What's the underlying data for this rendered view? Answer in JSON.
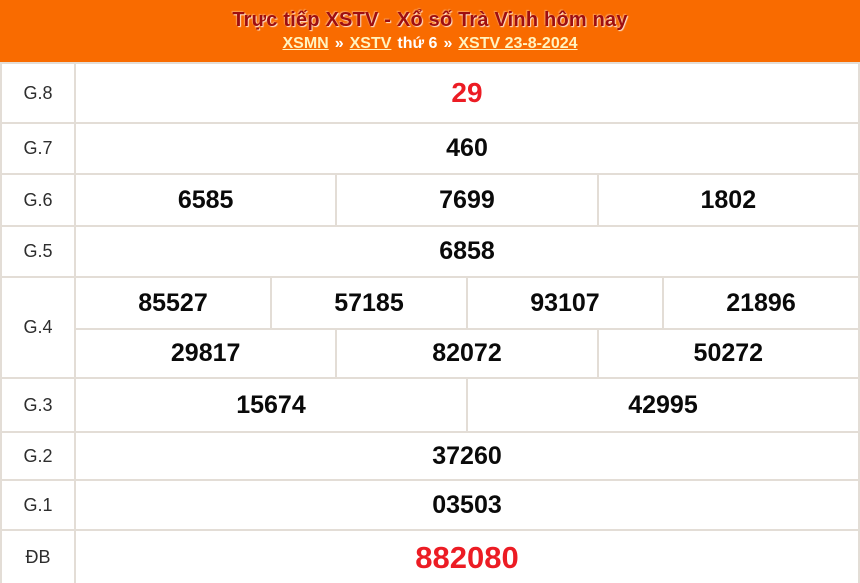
{
  "header": {
    "title": "Trực tiếp XSTV - Xổ số Trà Vinh hôm nay",
    "breadcrumb": {
      "xsmn": "XSMN",
      "sep": "»",
      "xstv": "XSTV",
      "day": "thứ 6",
      "date": "XSTV 23-8-2024"
    }
  },
  "results": {
    "g8": {
      "label": "G.8",
      "values": [
        "29"
      ]
    },
    "g7": {
      "label": "G.7",
      "values": [
        "460"
      ]
    },
    "g6": {
      "label": "G.6",
      "values": [
        "6585",
        "7699",
        "1802"
      ]
    },
    "g5": {
      "label": "G.5",
      "values": [
        "6858"
      ]
    },
    "g4": {
      "label": "G.4",
      "row1": [
        "85527",
        "57185",
        "93107",
        "21896"
      ],
      "row2": [
        "29817",
        "82072",
        "50272"
      ]
    },
    "g3": {
      "label": "G.3",
      "values": [
        "15674",
        "42995"
      ]
    },
    "g2": {
      "label": "G.2",
      "values": [
        "37260"
      ]
    },
    "g1": {
      "label": "G.1",
      "values": [
        "03503"
      ]
    },
    "db": {
      "label": "ĐB",
      "values": [
        "882080"
      ]
    }
  },
  "colors": {
    "orange": "#F96B00",
    "title": "#9E0E10",
    "link": "#FFF3C0",
    "white-text": "#FFFFFF",
    "red": "#EC1C24",
    "num": "#0A0A0A",
    "label": "#2E2E2E",
    "border": "#E3DDD6",
    "cell-bg": "#FFFFFF"
  }
}
